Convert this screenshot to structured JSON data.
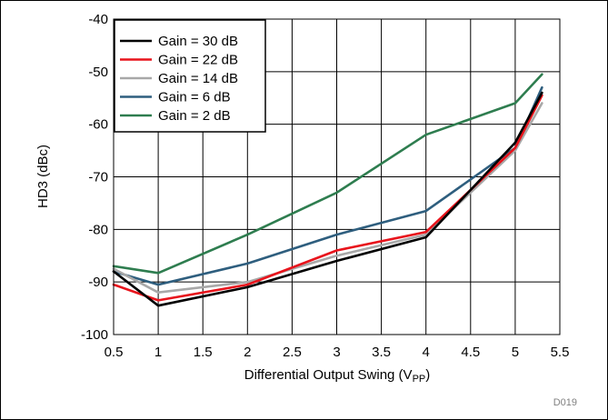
{
  "chart_data": {
    "type": "line",
    "title": "",
    "xlabel": "Differential Output Swing (V",
    "xlabel_sub": "PP",
    "xlabel_suffix": ")",
    "ylabel": "HD3 (dBc)",
    "xlim": [
      0.5,
      5.5
    ],
    "ylim": [
      -100,
      -40
    ],
    "x_ticks": [
      0.5,
      1,
      1.5,
      2,
      2.5,
      3,
      3.5,
      4,
      4.5,
      5,
      5.5
    ],
    "x_tick_labels": [
      "0.5",
      "1",
      "1.5",
      "2",
      "2.5",
      "3",
      "3.5",
      "4",
      "4.5",
      "5",
      "5.5"
    ],
    "y_ticks": [
      -100,
      -90,
      -80,
      -70,
      -60,
      -50,
      -40
    ],
    "y_tick_labels": [
      "-100",
      "-90",
      "-80",
      "-70",
      "-60",
      "-50",
      "-40"
    ],
    "grid": true,
    "legend_position": "top-left",
    "code": "D019",
    "series": [
      {
        "name": "Gain = 30 dB",
        "color": "#000000",
        "x": [
          0.5,
          1,
          2,
          3,
          4,
          5,
          5.3
        ],
        "y": [
          -88,
          -94.5,
          -91,
          -86,
          -81.5,
          -63.5,
          -54
        ]
      },
      {
        "name": "Gain = 22 dB",
        "color": "#e8141c",
        "x": [
          0.5,
          1,
          2,
          3,
          4,
          5,
          5.3
        ],
        "y": [
          -90.5,
          -93.5,
          -90.5,
          -84,
          -80.5,
          -64.5,
          -54.5
        ]
      },
      {
        "name": "Gain = 14 dB",
        "color": "#a8a8a8",
        "x": [
          0.5,
          1,
          2,
          3,
          4,
          5,
          5.3
        ],
        "y": [
          -87.5,
          -92,
          -90,
          -85,
          -81,
          -65,
          -56
        ]
      },
      {
        "name": "Gain = 6 dB",
        "color": "#2e5e7e",
        "x": [
          0.5,
          1,
          2,
          3,
          4,
          5,
          5.3
        ],
        "y": [
          -88,
          -90.5,
          -86.5,
          -81,
          -76.5,
          -64.5,
          -53
        ]
      },
      {
        "name": "Gain = 2 dB",
        "color": "#2e7d4f",
        "x": [
          0.5,
          1,
          2,
          3,
          4,
          5,
          5.3
        ],
        "y": [
          -87,
          -88.3,
          -81,
          -73,
          -62,
          -56,
          -50.5
        ]
      }
    ]
  }
}
